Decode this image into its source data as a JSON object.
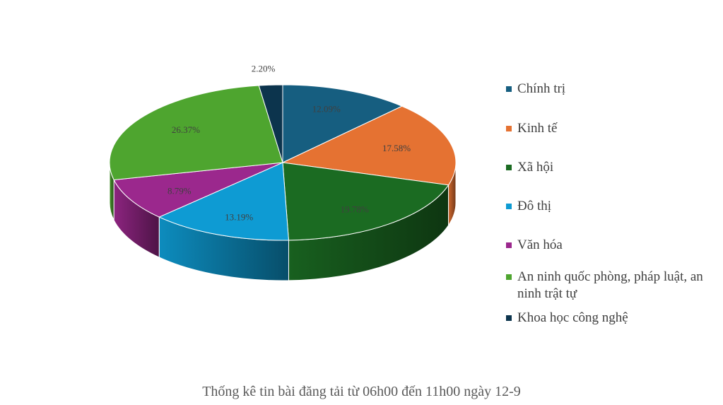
{
  "chart_data": {
    "type": "pie",
    "title": "Thống kê tin bài đăng tải từ 06h00 đến 11h00 ngày 12-9",
    "legend_position": "right",
    "style": "3d",
    "slices": [
      {
        "name": "Chính trị",
        "value": 12.09,
        "label": "12.09%",
        "color": "#165E80"
      },
      {
        "name": "Kinh tế",
        "value": 17.58,
        "label": "17.58%",
        "color": "#E57232"
      },
      {
        "name": "Xã hội",
        "value": 19.78,
        "label": "19.78%",
        "color": "#1B6B22"
      },
      {
        "name": "Đô thị",
        "value": 13.19,
        "label": "13.19%",
        "color": "#0E9BD3"
      },
      {
        "name": "Văn hóa",
        "value": 8.79,
        "label": "8.79%",
        "color": "#9B288D"
      },
      {
        "name": "An ninh quốc phòng, pháp luật, an ninh trật tự",
        "value": 26.37,
        "label": "26.37%",
        "color": "#4EA52F"
      },
      {
        "name": "Khoa học công nghệ",
        "value": 2.2,
        "label": "2.20%",
        "color": "#0C344D"
      }
    ]
  }
}
